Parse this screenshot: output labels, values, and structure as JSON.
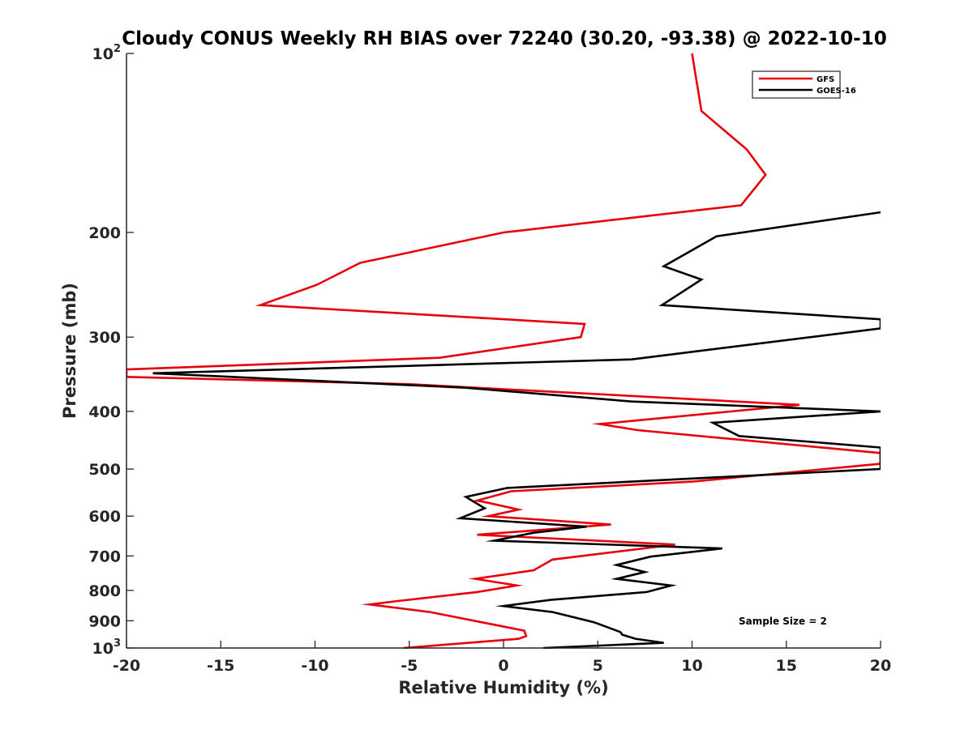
{
  "chart_data": {
    "type": "line",
    "title": "Cloudy CONUS Weekly RH BIAS over 72240 (30.20, -93.38) @ 2022-10-10",
    "xlabel": "Relative Humidity (%)",
    "ylabel": "Pressure (mb)",
    "xlim": [
      -20,
      20
    ],
    "ylim": [
      100,
      1000
    ],
    "yscale": "log",
    "y_reversed": true,
    "xticks": [
      -20,
      -15,
      -10,
      -5,
      0,
      5,
      10,
      15,
      20
    ],
    "xtick_labels": [
      "-20",
      "-15",
      "-10",
      "-5",
      "0",
      "5",
      "10",
      "15",
      "20"
    ],
    "yticks": [
      100,
      200,
      300,
      400,
      500,
      600,
      700,
      800,
      900,
      1000
    ],
    "ytick_labels": [
      {
        "base": "10",
        "exp": "2"
      },
      {
        "base": "200",
        "exp": ""
      },
      {
        "base": "300",
        "exp": ""
      },
      {
        "base": "400",
        "exp": ""
      },
      {
        "base": "500",
        "exp": ""
      },
      {
        "base": "600",
        "exp": ""
      },
      {
        "base": "700",
        "exp": ""
      },
      {
        "base": "800",
        "exp": ""
      },
      {
        "base": "900",
        "exp": ""
      },
      {
        "base": "10",
        "exp": "3"
      }
    ],
    "legend_location": "top-right",
    "annotation": "Sample Size = 2",
    "series": [
      {
        "name": "GFS",
        "color": "#e8000b",
        "x": [
          10.0,
          10.5,
          12.9,
          13.9,
          12.6,
          0.0,
          -7.6,
          -9.9,
          -12.9,
          4.3,
          4.1,
          -3.4,
          -20.0,
          -20.0,
          -20.0,
          -5.0,
          15.7,
          5.1,
          7.1,
          20.0,
          20.0,
          20.0,
          10.0,
          0.4,
          -1.4,
          -0.8,
          0.8,
          -0.8,
          5.7,
          -1.4,
          9.1,
          2.6,
          1.6,
          -1.5,
          0.7,
          -1.4,
          -5.8,
          -7.1,
          -3.9,
          1.1,
          1.2,
          0.8,
          -5.3
        ],
        "y": [
          100,
          125,
          145,
          160,
          180,
          200,
          225,
          245,
          265,
          285,
          300,
          325,
          340,
          345,
          350,
          360,
          390,
          420,
          430,
          470,
          480,
          490,
          525,
          545,
          565,
          570,
          585,
          600,
          620,
          645,
          670,
          710,
          740,
          765,
          785,
          805,
          835,
          845,
          870,
          935,
          955,
          965,
          1000
        ]
      },
      {
        "name": "GOES-16",
        "color": "#000000",
        "x": [
          20.0,
          11.3,
          8.5,
          10.5,
          8.4,
          20.0,
          20.0,
          6.8,
          -18.6,
          -2.0,
          6.8,
          20.0,
          11.1,
          12.5,
          20.0,
          20.0,
          0.2,
          -2.0,
          -1.0,
          -2.3,
          4.4,
          1.6,
          -0.5,
          11.6,
          7.8,
          6.0,
          7.5,
          6.0,
          8.9,
          7.6,
          2.5,
          0.0,
          2.6,
          4.8,
          6.2,
          6.3,
          7.0,
          8.5,
          2.1
        ],
        "y": [
          185,
          203,
          228,
          240,
          265,
          280,
          290,
          327,
          345,
          365,
          385,
          400,
          418,
          440,
          460,
          500,
          538,
          557,
          582,
          605,
          625,
          640,
          660,
          680,
          702,
          725,
          745,
          765,
          785,
          805,
          830,
          850,
          870,
          905,
          940,
          950,
          965,
          980,
          1000
        ]
      }
    ]
  }
}
